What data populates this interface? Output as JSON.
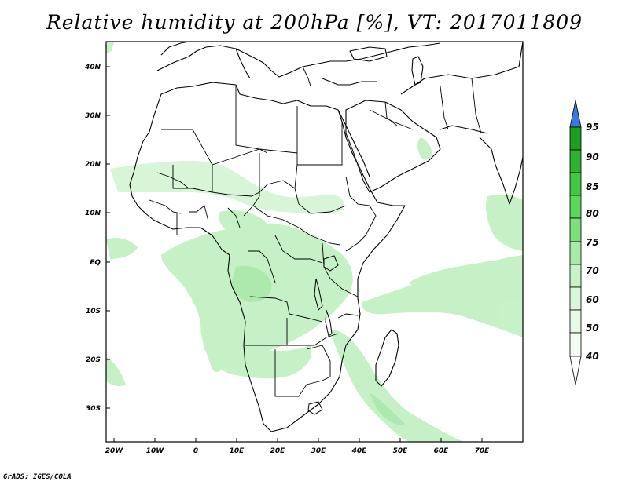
{
  "title": "Relative humidity at 200hPa [%], VT: 2017011809",
  "footer": "GrADS: IGES/COLA",
  "map": {
    "lon_labels": [
      "20W",
      "10W",
      "0",
      "10E",
      "20E",
      "30E",
      "40E",
      "50E",
      "60E",
      "70E"
    ],
    "lat_labels": [
      "40N",
      "30N",
      "20N",
      "10N",
      "EQ",
      "10S",
      "20S",
      "30S"
    ]
  },
  "colorbar": {
    "levels": [
      "95",
      "90",
      "85",
      "80",
      "75",
      "70",
      "60",
      "50",
      "40"
    ],
    "colors": {
      "above_95": "#3a78e0",
      "90_95": "#1e9e1e",
      "85_90": "#2fb22f",
      "80_85": "#42c842",
      "75_80": "#5ad85a",
      "70_75": "#7ce07c",
      "60_70": "#a8eaa8",
      "50_60": "#c8f3c8",
      "40_50": "#e6fbe6",
      "below_40": "#ffffff"
    }
  }
}
